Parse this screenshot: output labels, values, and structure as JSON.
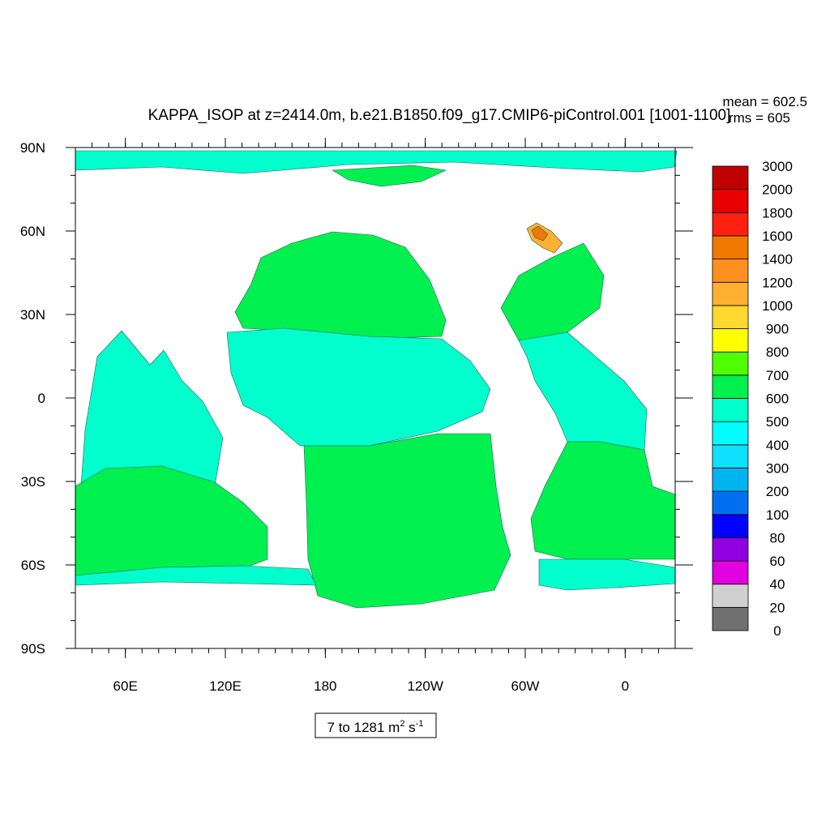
{
  "figure": {
    "title": "KAPPA_ISOP at z=2414.0m, b.e21.B1850.f09_g17.CMIP6-piControl.001 [1001-1100]",
    "stats": {
      "mean": "mean = 602.5",
      "rms": "rms = 605"
    },
    "range_box": {
      "text": "7 to 1281 m",
      "sup1": "2",
      "mid": " s",
      "sup2": "-1"
    }
  },
  "chart_data": {
    "type": "heatmap",
    "title": "KAPPA_ISOP at z=2414.0m, b.e21.B1850.f09_g17.CMIP6-piControl.001 [1001-1100]",
    "projection": "cylindrical-equidistant",
    "lon_range": [
      30,
      390
    ],
    "lat_range": [
      -90,
      90
    ],
    "x_ticks": [
      {
        "lon": 60,
        "label": "60E"
      },
      {
        "lon": 120,
        "label": "120E"
      },
      {
        "lon": 180,
        "label": "180"
      },
      {
        "lon": 240,
        "label": "120W"
      },
      {
        "lon": 300,
        "label": "60W"
      },
      {
        "lon": 360,
        "label": "0"
      }
    ],
    "y_ticks": [
      {
        "lat": 90,
        "label": "90N"
      },
      {
        "lat": 60,
        "label": "60N"
      },
      {
        "lat": 30,
        "label": "30N"
      },
      {
        "lat": 0,
        "label": "0"
      },
      {
        "lat": -30,
        "label": "30S"
      },
      {
        "lat": -60,
        "label": "60S"
      },
      {
        "lat": -90,
        "label": "90S"
      }
    ],
    "colorbar": {
      "levels": [
        "0",
        "20",
        "40",
        "60",
        "80",
        "100",
        "200",
        "300",
        "400",
        "500",
        "600",
        "700",
        "800",
        "900",
        "1000",
        "1200",
        "1400",
        "1600",
        "1800",
        "2000",
        "3000"
      ],
      "colors": [
        "#707070",
        "#d0d0d0",
        "#e000e0",
        "#9000e0",
        "#0000ff",
        "#0070f0",
        "#00b4f0",
        "#10e0ff",
        "#00ffff",
        "#00ffcc",
        "#00f050",
        "#50ff00",
        "#ffff00",
        "#ffd830",
        "#ffb030",
        "#ff9020",
        "#f07800",
        "#ff2010",
        "#e80000",
        "#c00000"
      ]
    },
    "annotations": {
      "mean": 602.5,
      "rms": 605,
      "min": 7,
      "max": 1281
    },
    "grid": false,
    "legend": "right"
  }
}
